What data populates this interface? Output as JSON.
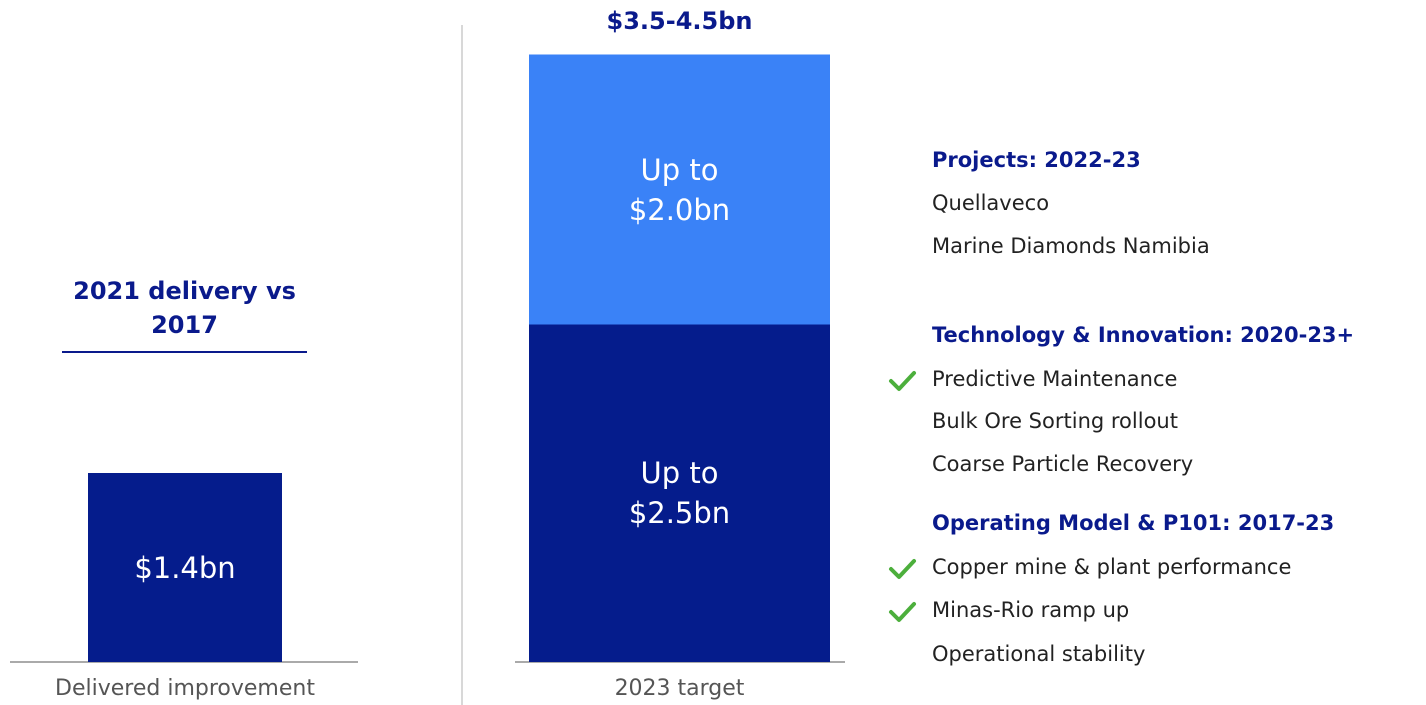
{
  "chart_data": {
    "type": "bar",
    "bars": [
      {
        "category": "Delivered improvement",
        "heading": "2021 delivery vs 2017",
        "segments": [
          {
            "value": 1.4,
            "value_label": "$1.4bn",
            "color": "#051c8c"
          }
        ]
      },
      {
        "category": "2023 target",
        "heading": "$3.5-4.5bn",
        "segments": [
          {
            "value": 2.5,
            "value_label": "Up to $2.5bn",
            "color": "#051c8c"
          },
          {
            "value": 2.0,
            "value_label": "Up to $2.0bn",
            "color": "#3a82f7"
          }
        ]
      }
    ],
    "sections": [
      {
        "heading": "Projects: 2022-23",
        "items": [
          {
            "text": "Quellaveco",
            "checked": false
          },
          {
            "text": "Marine Diamonds Namibia",
            "checked": false
          }
        ]
      },
      {
        "heading": "Technology & Innovation: 2020-23+",
        "items": [
          {
            "text": "Predictive Maintenance",
            "checked": true
          },
          {
            "text": "Bulk Ore Sorting rollout",
            "checked": false
          },
          {
            "text": "Coarse Particle Recovery",
            "checked": false
          }
        ]
      },
      {
        "heading": "Operating Model & P101: 2017-23",
        "items": [
          {
            "text": "Copper mine & plant performance",
            "checked": true
          },
          {
            "text": "Minas-Rio ramp up",
            "checked": true
          },
          {
            "text": "Operational stability",
            "checked": false
          }
        ]
      }
    ],
    "check_color": "#4caf3c"
  }
}
